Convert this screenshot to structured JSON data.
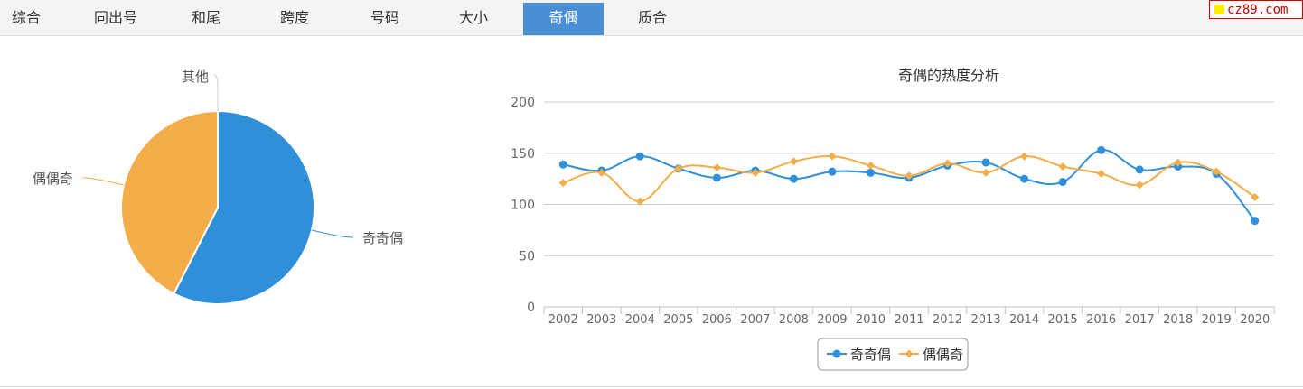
{
  "tabs": [
    {
      "label": "综合",
      "active": false
    },
    {
      "label": "同出号",
      "active": false
    },
    {
      "label": "和尾",
      "active": false
    },
    {
      "label": "跨度",
      "active": false
    },
    {
      "label": "号码",
      "active": false
    },
    {
      "label": "大小",
      "active": false
    },
    {
      "label": "奇偶",
      "active": true
    },
    {
      "label": "质合",
      "active": false
    }
  ],
  "logo": {
    "text": "cz89.com"
  },
  "colors": {
    "blue": "#2f8fd8",
    "orange": "#f3ad49",
    "active_tab": "#4a8fd6"
  },
  "chart_data": [
    {
      "type": "pie",
      "labels": [
        "奇奇偶",
        "偶偶奇",
        "其他"
      ],
      "values": [
        57.5,
        42.5,
        0
      ],
      "colors": [
        "#2f8fd8",
        "#f3ad49",
        "#cccccc"
      ]
    },
    {
      "type": "line",
      "title": "奇偶的热度分析",
      "categories": [
        "2002",
        "2003",
        "2004",
        "2005",
        "2006",
        "2007",
        "2008",
        "2009",
        "2010",
        "2011",
        "2012",
        "2013",
        "2014",
        "2015",
        "2016",
        "2017",
        "2018",
        "2019",
        "2020"
      ],
      "series": [
        {
          "name": "奇奇偶",
          "color": "#2f8fd8",
          "marker": "circle",
          "values": [
            139,
            133,
            147,
            135,
            126,
            133,
            125,
            132,
            131,
            126,
            138,
            141,
            125,
            122,
            153,
            134,
            137,
            130,
            84
          ]
        },
        {
          "name": "偶偶奇",
          "color": "#f3ad49",
          "marker": "diamond",
          "values": [
            121,
            131,
            103,
            135,
            136,
            131,
            142,
            147,
            138,
            128,
            140,
            131,
            147,
            137,
            130,
            119,
            141,
            132,
            107
          ]
        }
      ],
      "ylim": [
        0,
        200
      ],
      "yticks": [
        0,
        50,
        100,
        150,
        200
      ],
      "grid": true,
      "legend_position": "bottom-center"
    }
  ]
}
